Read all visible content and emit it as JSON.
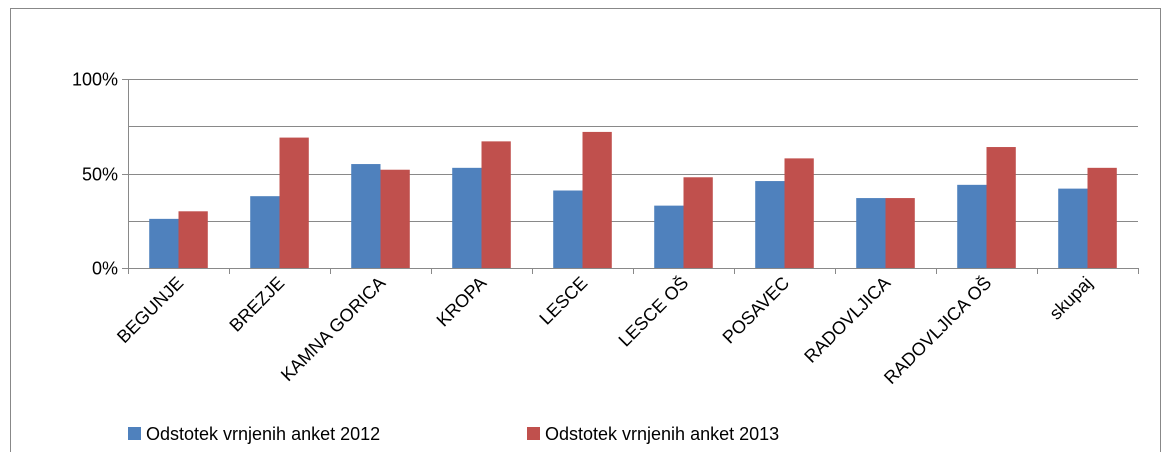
{
  "chart_data": {
    "type": "bar",
    "categories": [
      "BEGUNJE",
      "BREZJE",
      "KAMNA GORICA",
      "KROPA",
      "LESCE",
      "LESCE OŠ",
      "POSAVEC",
      "RADOVLJICA",
      "RADOVLJICA OŠ",
      "skupaj"
    ],
    "series": [
      {
        "name": "Odstotek vrnjenih anket 2012",
        "color": "#4f81bd",
        "values": [
          26,
          38,
          55,
          53,
          41,
          33,
          46,
          37,
          44,
          42
        ]
      },
      {
        "name": "Odstotek vrnjenih anket 2013",
        "color": "#c0504d",
        "values": [
          30,
          69,
          52,
          67,
          72,
          48,
          58,
          37,
          64,
          53
        ]
      }
    ],
    "ylim": [
      0,
      100
    ],
    "yticks": [
      {
        "value": 0,
        "label": "0%"
      },
      {
        "value": 50,
        "label": "50%"
      },
      {
        "value": 100,
        "label": "100%"
      }
    ],
    "minor_yticks": [
      25,
      75
    ],
    "grid": true,
    "legend": "bottom"
  }
}
